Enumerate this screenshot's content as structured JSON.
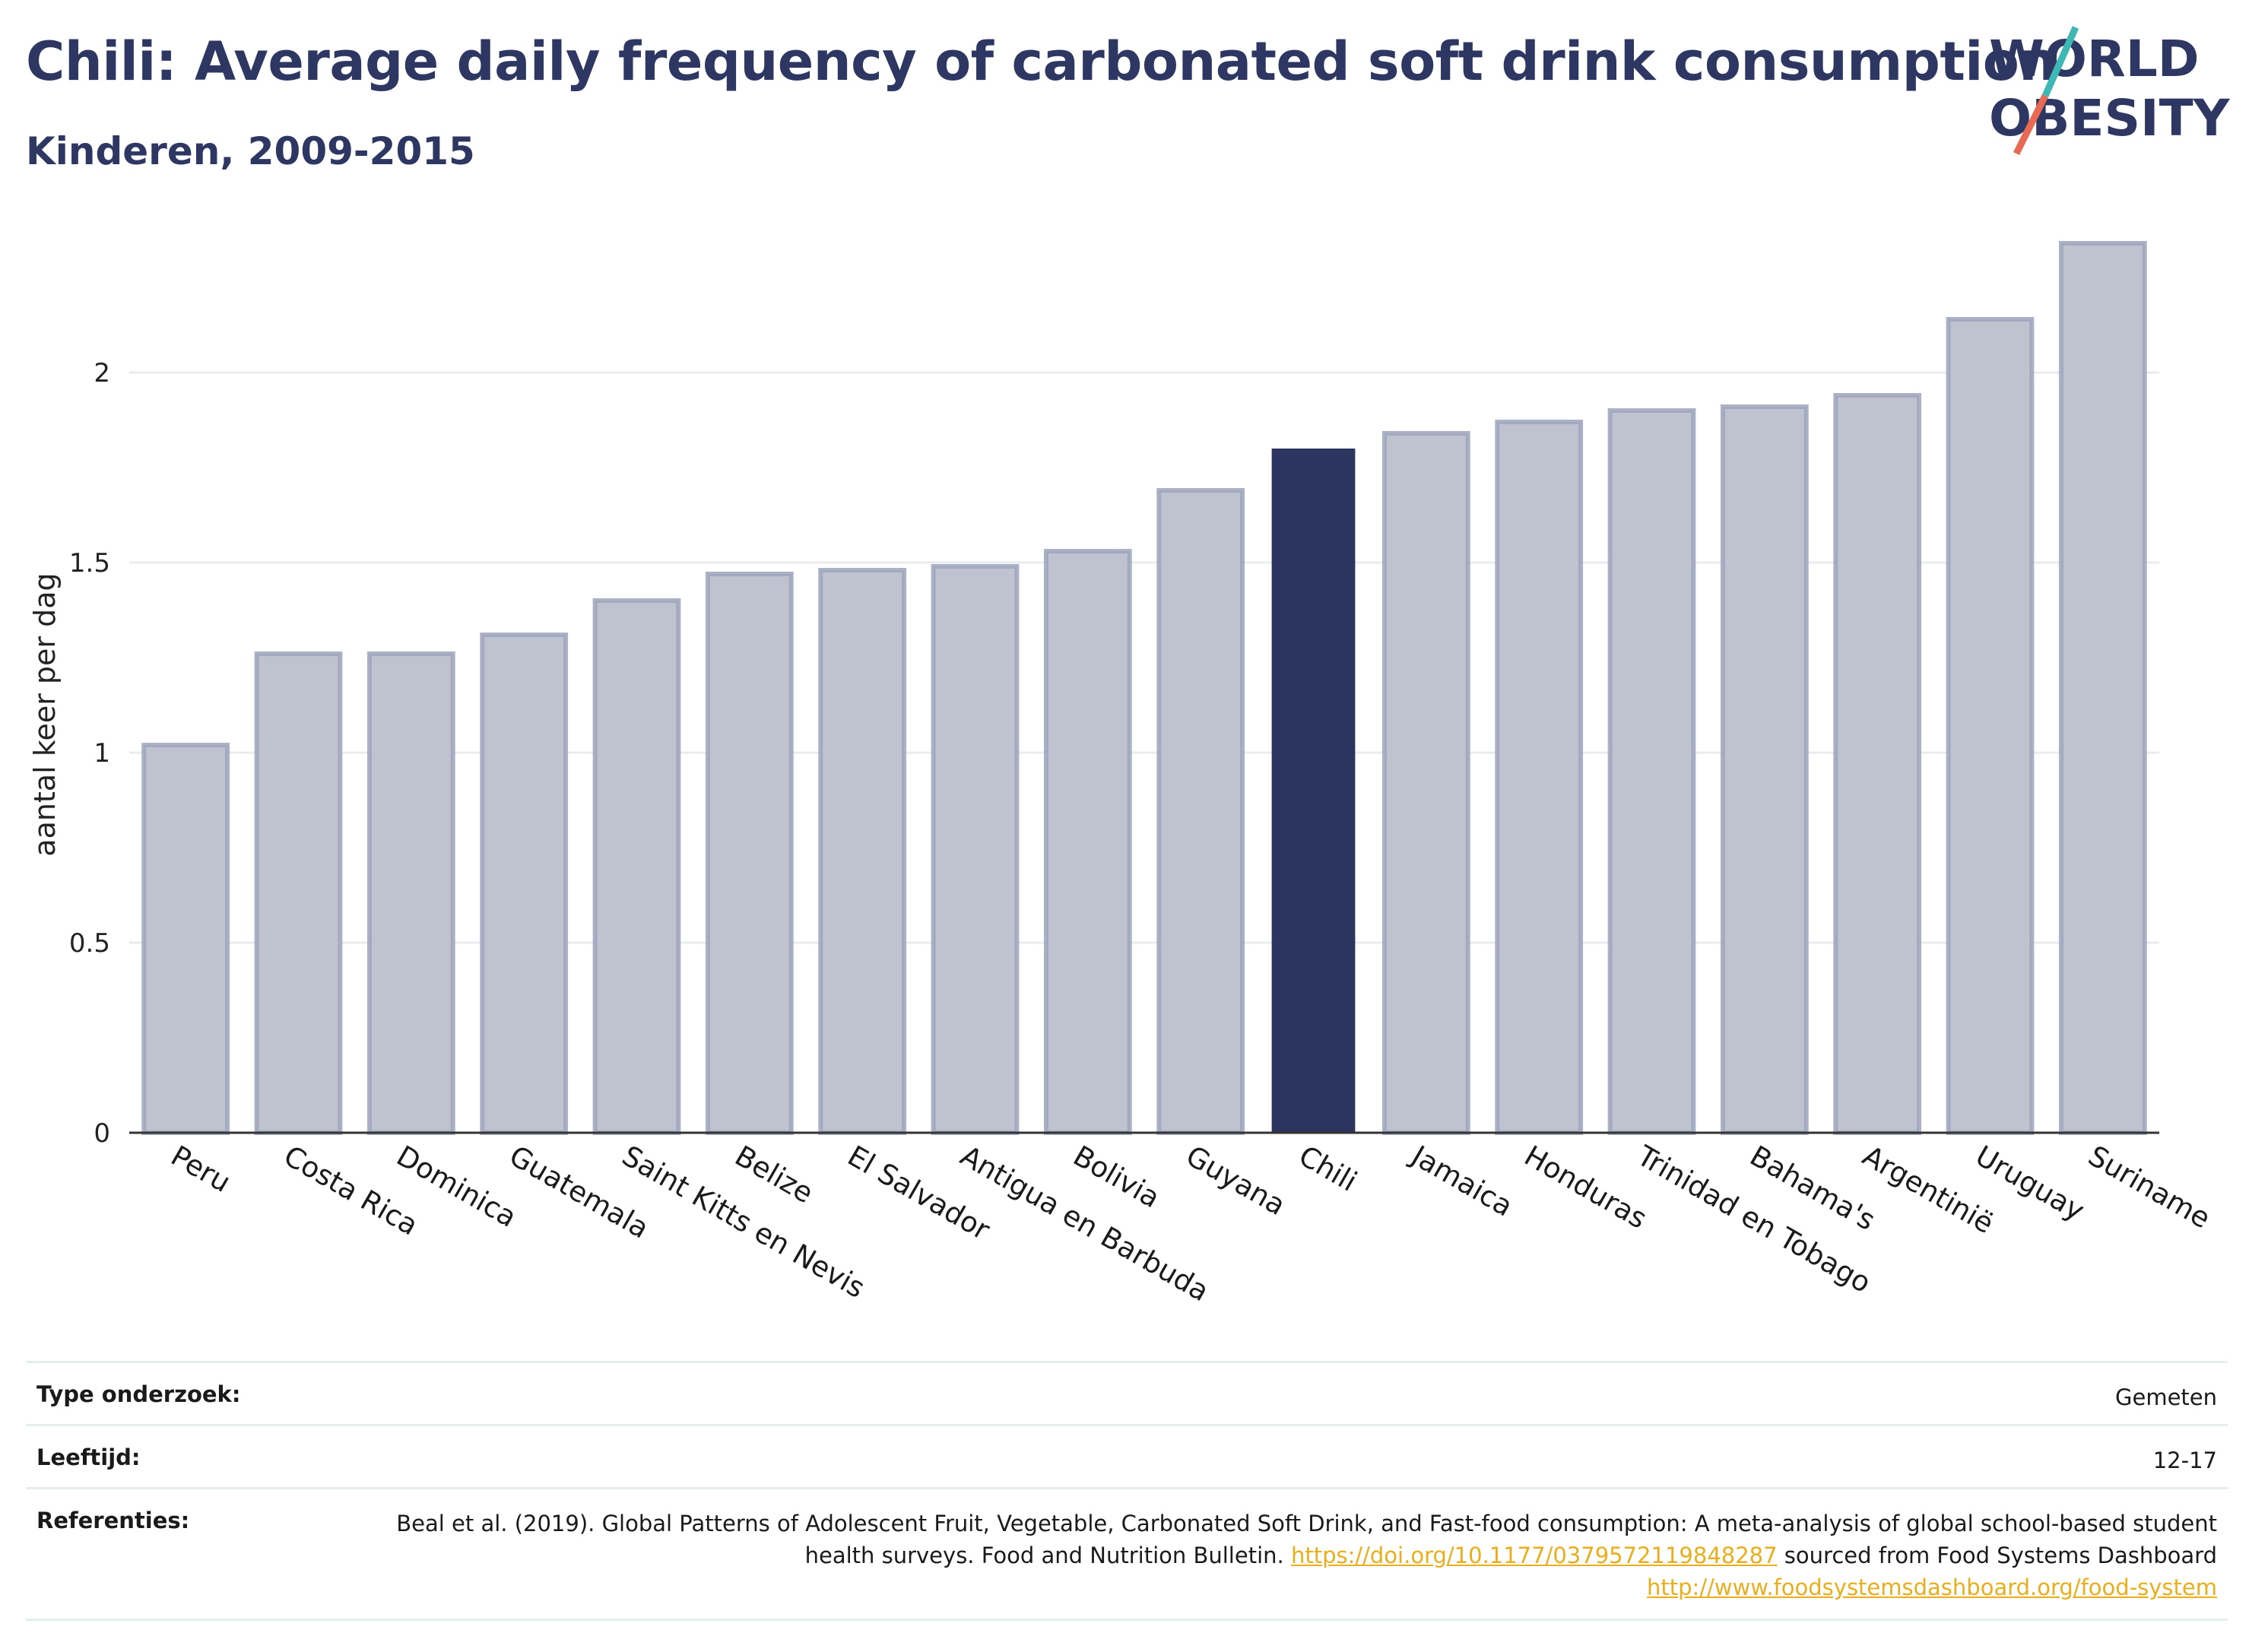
{
  "header": {
    "title": "Chili: Average daily frequency of carbonated soft drink consumption",
    "subtitle": "Kinderen, 2009-2015",
    "logo_line1": "WORLD",
    "logo_line2": "OBESITY"
  },
  "colors": {
    "bar": "#bfc3d0",
    "bar_border": "#9ea4bb",
    "highlight": "#2b3560",
    "title": "#2d3762",
    "link": "#e8ae1d",
    "logo_teal": "#3fb8b3",
    "logo_red": "#e86a55"
  },
  "chart_data": {
    "type": "bar",
    "title": "",
    "xlabel": "",
    "ylabel": "aantal keer per dag",
    "ylim": [
      0,
      2.4
    ],
    "yticks": [
      0,
      0.5,
      1,
      1.5,
      2
    ],
    "ytick_labels": [
      "0",
      "0.5",
      "1",
      "1.5",
      "2"
    ],
    "grid": true,
    "highlight": "Chili",
    "categories": [
      "Peru",
      "Costa Rica",
      "Dominica",
      "Guatemala",
      "Saint Kitts en Nevis",
      "Belize",
      "El Salvador",
      "Antigua en Barbuda",
      "Bolivia",
      "Guyana",
      "Chili",
      "Jamaica",
      "Honduras",
      "Trinidad en Tobago",
      "Bahama's",
      "Argentinië",
      "Uruguay",
      "Suriname"
    ],
    "values": [
      1.02,
      1.26,
      1.26,
      1.31,
      1.4,
      1.47,
      1.48,
      1.49,
      1.53,
      1.69,
      1.8,
      1.84,
      1.87,
      1.9,
      1.91,
      1.94,
      2.14,
      2.34
    ]
  },
  "meta": {
    "type_label": "Type onderzoek:",
    "type_value": "Gemeten",
    "age_label": "Leeftijd:",
    "age_value": "12-17",
    "ref_label": "Referenties:",
    "ref_text_1": "Beal et al. (2019). Global Patterns of Adolescent Fruit, Vegetable, Carbonated Soft Drink, and Fast-food consumption: A meta-analysis of global school-based student health surveys. Food and Nutrition Bulletin. ",
    "ref_link_1": "https://doi.org/10.1177/0379572119848287",
    "ref_text_2": " sourced from Food Systems Dashboard ",
    "ref_link_2": "http://www.foodsystemsdashboard.org/food-system"
  }
}
